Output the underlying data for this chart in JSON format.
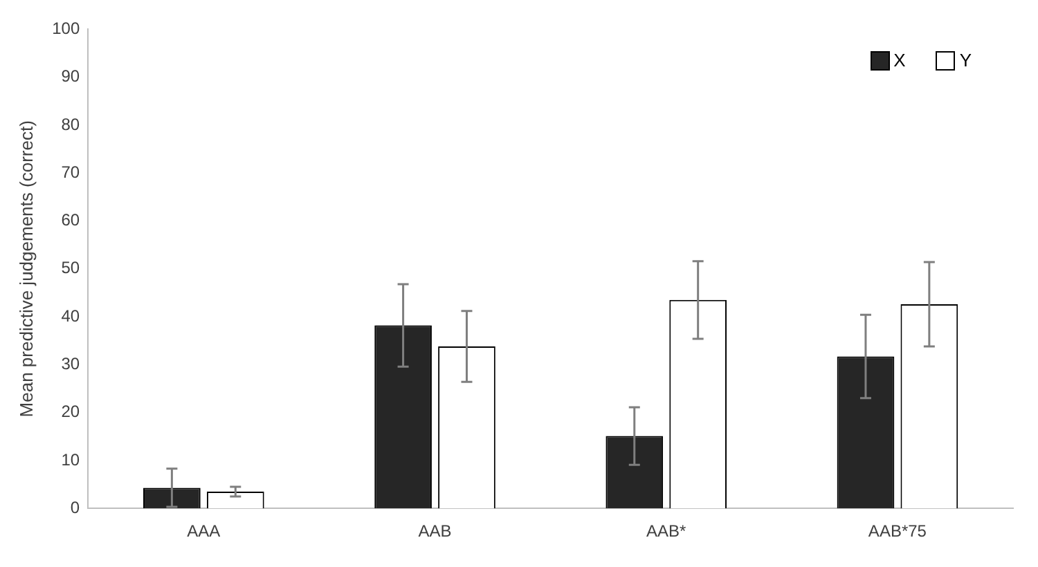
{
  "chart_data": {
    "type": "bar",
    "ylabel": "Mean predictive judgements (correct)",
    "categories": [
      "AAA",
      "AAB",
      "AAB*",
      "AAB*75"
    ],
    "series": [
      {
        "name": "X",
        "color": "#262626",
        "values": [
          4.3,
          38.2,
          15.1,
          31.7
        ],
        "errors": [
          4,
          8.6,
          6,
          8.7
        ]
      },
      {
        "name": "Y",
        "color": "#ffffff",
        "values": [
          3.5,
          33.8,
          43.5,
          42.6
        ],
        "errors": [
          1,
          7.4,
          8.1,
          8.8
        ]
      }
    ],
    "ylim": [
      0,
      100
    ],
    "yticks": [
      0,
      10,
      20,
      30,
      40,
      50,
      60,
      70,
      80,
      90,
      100
    ],
    "grid": false,
    "legend": "top right"
  }
}
